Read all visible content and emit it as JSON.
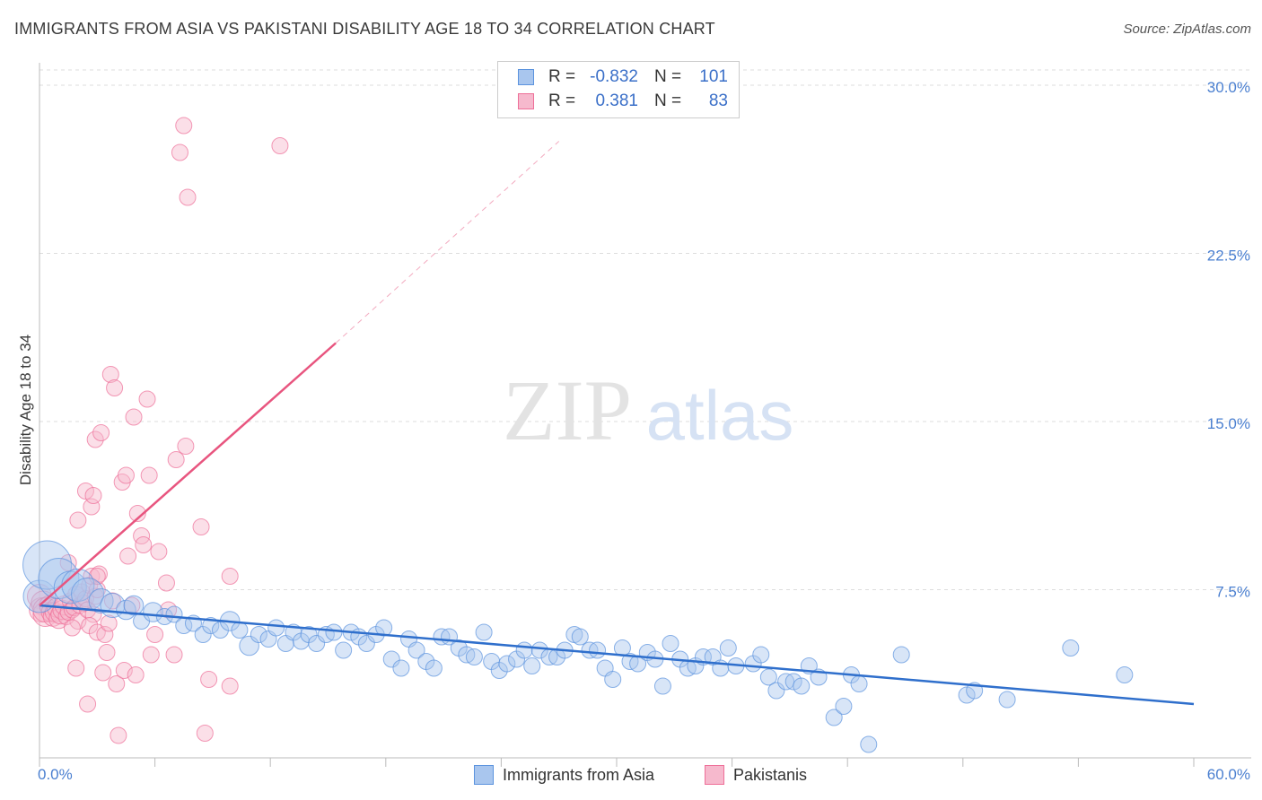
{
  "title": "IMMIGRANTS FROM ASIA VS PAKISTANI DISABILITY AGE 18 TO 34 CORRELATION CHART",
  "source": "Source: ZipAtlas.com",
  "watermark": {
    "zip": "ZIP",
    "atlas": "atlas"
  },
  "colors": {
    "blue": "#5b93de",
    "blue_fill": "#a9c6ee",
    "blue_line": "#2f6fcc",
    "pink": "#ee6f98",
    "pink_fill": "#f6b9cd",
    "pink_line": "#e8557f",
    "grid": "#dddddd",
    "axis_text": "#4a7fd0"
  },
  "legend": {
    "rows": [
      {
        "r_label": "R =",
        "r_value": "-0.832",
        "n_label": "N =",
        "n_value": "101"
      },
      {
        "r_label": "R =",
        "r_value": "0.381",
        "n_label": "N =",
        "n_value": "83"
      }
    ]
  },
  "bottom_legend": {
    "series1": "Immigrants from Asia",
    "series2": "Pakistanis"
  },
  "chart_data": {
    "type": "scatter",
    "title": "IMMIGRANTS FROM ASIA VS PAKISTANI DISABILITY AGE 18 TO 34 CORRELATION CHART",
    "xlabel": "",
    "ylabel": "Disability Age 18 to 34",
    "xlim": [
      0,
      60
    ],
    "ylim": [
      0,
      31
    ],
    "x_tick_labels": [
      "0.0%",
      "60.0%"
    ],
    "y_ticks": [
      7.5,
      15.0,
      22.5,
      30.0
    ],
    "y_tick_labels": [
      "7.5%",
      "15.0%",
      "22.5%",
      "30.0%"
    ],
    "grid": true,
    "series": [
      {
        "name": "Immigrants from Asia",
        "R": -0.832,
        "N": 101,
        "trend": {
          "x": [
            0,
            60
          ],
          "y": [
            6.8,
            2.4
          ]
        },
        "points": [
          {
            "x": 0.0,
            "y": 7.2,
            "s": 2
          },
          {
            "x": 0.4,
            "y": 8.6,
            "s": 3
          },
          {
            "x": 1.0,
            "y": 8.0,
            "s": 2.5
          },
          {
            "x": 1.6,
            "y": 7.6,
            "s": 2
          },
          {
            "x": 2.0,
            "y": 7.7,
            "s": 2
          },
          {
            "x": 2.5,
            "y": 7.3,
            "s": 2
          },
          {
            "x": 3.2,
            "y": 7.0,
            "s": 1.5
          },
          {
            "x": 3.8,
            "y": 6.8,
            "s": 1.5
          },
          {
            "x": 4.5,
            "y": 6.6,
            "s": 1.2
          },
          {
            "x": 4.9,
            "y": 6.8,
            "s": 1.2
          },
          {
            "x": 5.3,
            "y": 6.1,
            "s": 1
          },
          {
            "x": 5.9,
            "y": 6.5,
            "s": 1.2
          },
          {
            "x": 6.5,
            "y": 6.3,
            "s": 1
          },
          {
            "x": 7.0,
            "y": 6.4,
            "s": 1
          },
          {
            "x": 7.5,
            "y": 5.9,
            "s": 1
          },
          {
            "x": 8.0,
            "y": 6.0,
            "s": 1
          },
          {
            "x": 8.5,
            "y": 5.5,
            "s": 1
          },
          {
            "x": 8.9,
            "y": 5.9,
            "s": 1
          },
          {
            "x": 9.4,
            "y": 5.7,
            "s": 1
          },
          {
            "x": 9.9,
            "y": 6.1,
            "s": 1.2
          },
          {
            "x": 10.4,
            "y": 5.7,
            "s": 1
          },
          {
            "x": 10.9,
            "y": 5.0,
            "s": 1.2
          },
          {
            "x": 11.4,
            "y": 5.5,
            "s": 1
          },
          {
            "x": 11.9,
            "y": 5.3,
            "s": 1
          },
          {
            "x": 12.3,
            "y": 5.8,
            "s": 1
          },
          {
            "x": 12.8,
            "y": 5.1,
            "s": 1
          },
          {
            "x": 13.2,
            "y": 5.6,
            "s": 1
          },
          {
            "x": 13.6,
            "y": 5.2,
            "s": 1
          },
          {
            "x": 14.0,
            "y": 5.5,
            "s": 1
          },
          {
            "x": 14.4,
            "y": 5.1,
            "s": 1
          },
          {
            "x": 14.9,
            "y": 5.5,
            "s": 1
          },
          {
            "x": 15.3,
            "y": 5.6,
            "s": 1
          },
          {
            "x": 15.8,
            "y": 4.8,
            "s": 1
          },
          {
            "x": 16.2,
            "y": 5.6,
            "s": 1
          },
          {
            "x": 16.6,
            "y": 5.4,
            "s": 1
          },
          {
            "x": 17.0,
            "y": 5.1,
            "s": 1
          },
          {
            "x": 17.5,
            "y": 5.5,
            "s": 1
          },
          {
            "x": 17.9,
            "y": 5.8,
            "s": 1
          },
          {
            "x": 18.3,
            "y": 4.4,
            "s": 1
          },
          {
            "x": 18.8,
            "y": 4.0,
            "s": 1
          },
          {
            "x": 19.2,
            "y": 5.3,
            "s": 1
          },
          {
            "x": 19.6,
            "y": 4.8,
            "s": 1
          },
          {
            "x": 20.1,
            "y": 4.3,
            "s": 1
          },
          {
            "x": 20.5,
            "y": 4.0,
            "s": 1
          },
          {
            "x": 20.9,
            "y": 5.4,
            "s": 1
          },
          {
            "x": 21.3,
            "y": 5.4,
            "s": 1
          },
          {
            "x": 21.8,
            "y": 4.9,
            "s": 1
          },
          {
            "x": 22.2,
            "y": 4.6,
            "s": 1
          },
          {
            "x": 22.6,
            "y": 4.5,
            "s": 1
          },
          {
            "x": 23.1,
            "y": 5.6,
            "s": 1
          },
          {
            "x": 23.5,
            "y": 4.3,
            "s": 1
          },
          {
            "x": 23.9,
            "y": 3.9,
            "s": 1
          },
          {
            "x": 24.3,
            "y": 4.2,
            "s": 1
          },
          {
            "x": 24.8,
            "y": 4.4,
            "s": 1
          },
          {
            "x": 25.2,
            "y": 4.8,
            "s": 1
          },
          {
            "x": 25.6,
            "y": 4.1,
            "s": 1
          },
          {
            "x": 26.0,
            "y": 4.8,
            "s": 1
          },
          {
            "x": 26.5,
            "y": 4.5,
            "s": 1
          },
          {
            "x": 26.9,
            "y": 4.5,
            "s": 1
          },
          {
            "x": 27.3,
            "y": 4.8,
            "s": 1
          },
          {
            "x": 27.8,
            "y": 5.5,
            "s": 1
          },
          {
            "x": 28.1,
            "y": 5.4,
            "s": 1
          },
          {
            "x": 28.6,
            "y": 4.8,
            "s": 1
          },
          {
            "x": 29.0,
            "y": 4.8,
            "s": 1
          },
          {
            "x": 29.4,
            "y": 4.0,
            "s": 1
          },
          {
            "x": 29.8,
            "y": 3.5,
            "s": 1
          },
          {
            "x": 30.3,
            "y": 4.9,
            "s": 1
          },
          {
            "x": 30.7,
            "y": 4.3,
            "s": 1
          },
          {
            "x": 31.1,
            "y": 4.2,
            "s": 1
          },
          {
            "x": 31.6,
            "y": 4.7,
            "s": 1
          },
          {
            "x": 32.0,
            "y": 4.4,
            "s": 1
          },
          {
            "x": 32.4,
            "y": 3.2,
            "s": 1
          },
          {
            "x": 32.8,
            "y": 5.1,
            "s": 1
          },
          {
            "x": 33.3,
            "y": 4.4,
            "s": 1
          },
          {
            "x": 33.7,
            "y": 4.0,
            "s": 1
          },
          {
            "x": 34.1,
            "y": 4.1,
            "s": 1
          },
          {
            "x": 34.5,
            "y": 4.5,
            "s": 1
          },
          {
            "x": 35.0,
            "y": 4.5,
            "s": 1
          },
          {
            "x": 35.4,
            "y": 4.0,
            "s": 1
          },
          {
            "x": 35.8,
            "y": 4.9,
            "s": 1
          },
          {
            "x": 36.2,
            "y": 4.1,
            "s": 1
          },
          {
            "x": 37.1,
            "y": 4.2,
            "s": 1
          },
          {
            "x": 37.5,
            "y": 4.6,
            "s": 1
          },
          {
            "x": 37.9,
            "y": 3.6,
            "s": 1
          },
          {
            "x": 38.3,
            "y": 3.0,
            "s": 1
          },
          {
            "x": 38.8,
            "y": 3.4,
            "s": 1
          },
          {
            "x": 39.2,
            "y": 3.4,
            "s": 1
          },
          {
            "x": 39.6,
            "y": 3.2,
            "s": 1
          },
          {
            "x": 40.0,
            "y": 4.1,
            "s": 1
          },
          {
            "x": 40.5,
            "y": 3.6,
            "s": 1
          },
          {
            "x": 41.3,
            "y": 1.8,
            "s": 1
          },
          {
            "x": 41.8,
            "y": 2.3,
            "s": 1
          },
          {
            "x": 42.2,
            "y": 3.7,
            "s": 1
          },
          {
            "x": 42.6,
            "y": 3.3,
            "s": 1
          },
          {
            "x": 43.1,
            "y": 0.6,
            "s": 1
          },
          {
            "x": 44.8,
            "y": 4.6,
            "s": 1
          },
          {
            "x": 48.2,
            "y": 2.8,
            "s": 1
          },
          {
            "x": 48.6,
            "y": 3.0,
            "s": 1
          },
          {
            "x": 50.3,
            "y": 2.6,
            "s": 1
          },
          {
            "x": 53.6,
            "y": 4.9,
            "s": 1
          },
          {
            "x": 56.4,
            "y": 3.7,
            "s": 1
          }
        ]
      },
      {
        "name": "Pakistanis",
        "R": 0.381,
        "N": 83,
        "trend": {
          "x": [
            0,
            15.4
          ],
          "y": [
            6.8,
            18.5
          ]
        },
        "trend_extension": {
          "x": [
            15.4,
            27.0
          ],
          "y": [
            18.5,
            27.5
          ]
        },
        "points": [
          {
            "x": 0.0,
            "y": 7.2,
            "s": 1.5
          },
          {
            "x": 0.1,
            "y": 6.6,
            "s": 1.5
          },
          {
            "x": 0.2,
            "y": 6.9,
            "s": 1.5
          },
          {
            "x": 0.3,
            "y": 6.4,
            "s": 1.5
          },
          {
            "x": 0.3,
            "y": 6.6,
            "s": 1.5
          },
          {
            "x": 0.5,
            "y": 6.8,
            "s": 1.2
          },
          {
            "x": 0.6,
            "y": 6.5,
            "s": 1.2
          },
          {
            "x": 0.7,
            "y": 6.3,
            "s": 1.2
          },
          {
            "x": 0.8,
            "y": 6.5,
            "s": 1.2
          },
          {
            "x": 0.9,
            "y": 6.7,
            "s": 1.2
          },
          {
            "x": 1.0,
            "y": 6.2,
            "s": 1.2
          },
          {
            "x": 1.1,
            "y": 6.4,
            "s": 1.2
          },
          {
            "x": 1.2,
            "y": 6.6,
            "s": 1.2
          },
          {
            "x": 1.3,
            "y": 6.8,
            "s": 1.2
          },
          {
            "x": 1.4,
            "y": 6.3,
            "s": 1
          },
          {
            "x": 1.5,
            "y": 6.5,
            "s": 1
          },
          {
            "x": 1.6,
            "y": 7.0,
            "s": 1
          },
          {
            "x": 1.7,
            "y": 6.6,
            "s": 1
          },
          {
            "x": 1.8,
            "y": 6.7,
            "s": 1
          },
          {
            "x": 1.9,
            "y": 7.3,
            "s": 1
          },
          {
            "x": 2.0,
            "y": 6.1,
            "s": 1
          },
          {
            "x": 2.1,
            "y": 6.8,
            "s": 1
          },
          {
            "x": 2.2,
            "y": 7.4,
            "s": 1
          },
          {
            "x": 2.3,
            "y": 6.9,
            "s": 1
          },
          {
            "x": 2.4,
            "y": 7.1,
            "s": 1
          },
          {
            "x": 2.5,
            "y": 6.6,
            "s": 1
          },
          {
            "x": 2.6,
            "y": 7.7,
            "s": 1
          },
          {
            "x": 2.7,
            "y": 8.1,
            "s": 1
          },
          {
            "x": 2.8,
            "y": 6.4,
            "s": 1
          },
          {
            "x": 2.9,
            "y": 7.2,
            "s": 1
          },
          {
            "x": 3.0,
            "y": 7.5,
            "s": 1
          },
          {
            "x": 3.1,
            "y": 8.2,
            "s": 1
          },
          {
            "x": 1.5,
            "y": 8.7,
            "s": 1
          },
          {
            "x": 1.7,
            "y": 5.8,
            "s": 1
          },
          {
            "x": 1.9,
            "y": 4.0,
            "s": 1
          },
          {
            "x": 2.0,
            "y": 10.6,
            "s": 1
          },
          {
            "x": 2.4,
            "y": 11.9,
            "s": 1
          },
          {
            "x": 2.5,
            "y": 2.4,
            "s": 1
          },
          {
            "x": 2.6,
            "y": 5.9,
            "s": 1
          },
          {
            "x": 2.7,
            "y": 11.2,
            "s": 1
          },
          {
            "x": 2.8,
            "y": 11.7,
            "s": 1
          },
          {
            "x": 2.9,
            "y": 14.2,
            "s": 1
          },
          {
            "x": 3.0,
            "y": 5.6,
            "s": 1
          },
          {
            "x": 3.0,
            "y": 8.1,
            "s": 1
          },
          {
            "x": 3.2,
            "y": 14.5,
            "s": 1
          },
          {
            "x": 3.3,
            "y": 3.8,
            "s": 1
          },
          {
            "x": 3.4,
            "y": 5.5,
            "s": 1
          },
          {
            "x": 3.5,
            "y": 4.7,
            "s": 1
          },
          {
            "x": 3.6,
            "y": 6.0,
            "s": 1
          },
          {
            "x": 3.7,
            "y": 17.1,
            "s": 1
          },
          {
            "x": 3.8,
            "y": 7.0,
            "s": 1
          },
          {
            "x": 3.9,
            "y": 16.5,
            "s": 1
          },
          {
            "x": 4.0,
            "y": 3.3,
            "s": 1
          },
          {
            "x": 4.1,
            "y": 1.0,
            "s": 1
          },
          {
            "x": 4.3,
            "y": 12.3,
            "s": 1
          },
          {
            "x": 4.4,
            "y": 3.9,
            "s": 1
          },
          {
            "x": 4.5,
            "y": 12.6,
            "s": 1
          },
          {
            "x": 4.6,
            "y": 9.0,
            "s": 1
          },
          {
            "x": 4.8,
            "y": 6.8,
            "s": 1
          },
          {
            "x": 4.9,
            "y": 15.2,
            "s": 1
          },
          {
            "x": 5.0,
            "y": 3.7,
            "s": 1
          },
          {
            "x": 5.1,
            "y": 10.9,
            "s": 1
          },
          {
            "x": 5.3,
            "y": 9.9,
            "s": 1
          },
          {
            "x": 5.4,
            "y": 9.5,
            "s": 1
          },
          {
            "x": 5.6,
            "y": 16.0,
            "s": 1
          },
          {
            "x": 5.7,
            "y": 12.6,
            "s": 1
          },
          {
            "x": 5.8,
            "y": 4.6,
            "s": 1
          },
          {
            "x": 6.0,
            "y": 5.5,
            "s": 1
          },
          {
            "x": 6.2,
            "y": 9.2,
            "s": 1
          },
          {
            "x": 6.6,
            "y": 7.8,
            "s": 1
          },
          {
            "x": 6.7,
            "y": 6.6,
            "s": 1
          },
          {
            "x": 7.0,
            "y": 4.6,
            "s": 1
          },
          {
            "x": 7.1,
            "y": 13.3,
            "s": 1
          },
          {
            "x": 7.3,
            "y": 27.0,
            "s": 1
          },
          {
            "x": 7.5,
            "y": 28.2,
            "s": 1
          },
          {
            "x": 7.6,
            "y": 13.9,
            "s": 1
          },
          {
            "x": 7.7,
            "y": 25.0,
            "s": 1
          },
          {
            "x": 8.4,
            "y": 10.3,
            "s": 1
          },
          {
            "x": 8.8,
            "y": 3.5,
            "s": 1
          },
          {
            "x": 8.6,
            "y": 1.1,
            "s": 1
          },
          {
            "x": 9.9,
            "y": 3.2,
            "s": 1
          },
          {
            "x": 9.9,
            "y": 8.1,
            "s": 1
          },
          {
            "x": 12.5,
            "y": 27.3,
            "s": 1
          }
        ]
      }
    ]
  }
}
